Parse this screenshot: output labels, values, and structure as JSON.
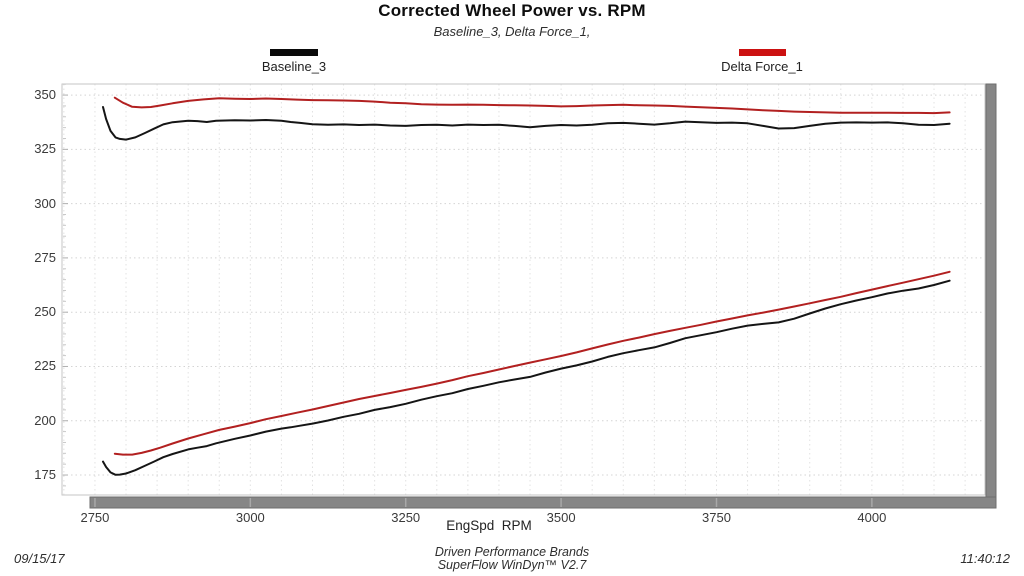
{
  "header": {
    "title": "Corrected Wheel Power vs. RPM",
    "subtitle": "Baseline_3, Delta Force_1,"
  },
  "legend": [
    {
      "label": "Baseline_3",
      "color": "#0a0a0a"
    },
    {
      "label": "Delta Force_1",
      "color": "#cc1111"
    }
  ],
  "footer": {
    "line1": "Driven Performance Brands",
    "line2": "SuperFlow WinDyn™ V2.7",
    "date": "09/15/17",
    "time": "11:40:12"
  },
  "chart_data": {
    "type": "line",
    "title": "Corrected Wheel Power vs. RPM",
    "subtitle": "Baseline_3, Delta Force_1,",
    "xlabel": "EngSpd  RPM",
    "ylabel": "",
    "xlim": [
      2697,
      4182
    ],
    "ylim": [
      165.8,
      355.1
    ],
    "xticks": [
      2750,
      3000,
      3250,
      3500,
      3750,
      4000
    ],
    "yticks": [
      175,
      200,
      225,
      250,
      275,
      300,
      325,
      350
    ],
    "x_minor_step": 50,
    "y_minor_step": 5,
    "grid": "dotted",
    "legend_position": "top",
    "colors": {
      "grid_h": "#d4d4d4",
      "grid_v": "#e2e2e2",
      "border": "#c6c6c6",
      "scrollbar_fill": "#868686",
      "scrollbar_edge": "#6e6e6e"
    },
    "series": [
      {
        "name": "Baseline_3 torque",
        "run": "Baseline_3",
        "color": "#151515",
        "x": [
          2763,
          2768,
          2775,
          2783,
          2790,
          2800,
          2815,
          2830,
          2845,
          2860,
          2875,
          2900,
          2915,
          2930,
          2945,
          2975,
          3000,
          3025,
          3050,
          3065,
          3080,
          3100,
          3125,
          3150,
          3175,
          3200,
          3225,
          3250,
          3275,
          3300,
          3325,
          3350,
          3375,
          3400,
          3425,
          3450,
          3475,
          3500,
          3525,
          3550,
          3575,
          3600,
          3625,
          3650,
          3675,
          3700,
          3725,
          3750,
          3775,
          3800,
          3825,
          3850,
          3875,
          3900,
          3925,
          3950,
          3975,
          4000,
          4025,
          4050,
          4075,
          4100,
          4125
        ],
        "y": [
          344.5,
          339.0,
          333.5,
          330.5,
          329.8,
          329.5,
          330.5,
          332.5,
          334.5,
          336.5,
          337.5,
          338.2,
          338.0,
          337.6,
          338.2,
          338.4,
          338.3,
          338.5,
          338.2,
          337.6,
          337.2,
          336.6,
          336.3,
          336.5,
          336.2,
          336.4,
          336.0,
          335.8,
          336.2,
          336.3,
          336.0,
          336.4,
          336.2,
          336.3,
          335.8,
          335.2,
          335.8,
          336.2,
          336.0,
          336.3,
          337.0,
          337.2,
          336.8,
          336.4,
          337.0,
          337.8,
          337.5,
          337.2,
          337.3,
          337.0,
          335.8,
          334.6,
          334.8,
          335.8,
          336.8,
          337.3,
          337.4,
          337.3,
          337.4,
          337.0,
          336.3,
          336.2,
          336.8
        ]
      },
      {
        "name": "Baseline_3 power",
        "run": "Baseline_3",
        "color": "#151515",
        "x": [
          2763,
          2768,
          2775,
          2783,
          2790,
          2800,
          2815,
          2830,
          2845,
          2860,
          2875,
          2900,
          2915,
          2930,
          2945,
          2975,
          3000,
          3025,
          3050,
          3065,
          3080,
          3100,
          3125,
          3150,
          3175,
          3200,
          3225,
          3250,
          3275,
          3300,
          3325,
          3350,
          3375,
          3400,
          3425,
          3450,
          3475,
          3500,
          3525,
          3550,
          3575,
          3600,
          3625,
          3650,
          3675,
          3700,
          3725,
          3750,
          3775,
          3800,
          3825,
          3850,
          3875,
          3900,
          3925,
          3950,
          3975,
          4000,
          4025,
          4050,
          4075,
          4100,
          4125
        ],
        "y": [
          181.2,
          178.7,
          176.2,
          175.1,
          175.2,
          175.7,
          177.2,
          179.2,
          181.2,
          183.2,
          184.7,
          186.8,
          187.6,
          188.3,
          189.6,
          191.7,
          193.2,
          195.0,
          196.4,
          197.0,
          197.7,
          198.7,
          200.1,
          201.8,
          203.2,
          205.0,
          206.3,
          207.8,
          209.7,
          211.3,
          212.7,
          214.6,
          216.1,
          217.7,
          219.0,
          220.2,
          222.2,
          224.0,
          225.5,
          227.3,
          229.4,
          231.1,
          232.5,
          233.8,
          235.8,
          238.0,
          239.4,
          240.8,
          242.4,
          243.8,
          244.6,
          245.3,
          247.0,
          249.4,
          251.7,
          253.7,
          255.4,
          256.9,
          258.6,
          259.9,
          260.9,
          262.5,
          264.5
        ]
      },
      {
        "name": "Delta Force_1 torque",
        "run": "Delta Force_1",
        "color": "#b22020",
        "x": [
          2782,
          2795,
          2810,
          2825,
          2840,
          2855,
          2875,
          2900,
          2925,
          2950,
          2975,
          3000,
          3025,
          3050,
          3075,
          3100,
          3125,
          3150,
          3175,
          3200,
          3225,
          3250,
          3275,
          3300,
          3325,
          3350,
          3375,
          3400,
          3425,
          3450,
          3475,
          3500,
          3525,
          3550,
          3575,
          3600,
          3625,
          3650,
          3675,
          3700,
          3725,
          3750,
          3775,
          3800,
          3825,
          3850,
          3875,
          3900,
          3925,
          3950,
          3975,
          4000,
          4025,
          4050,
          4075,
          4100,
          4125
        ],
        "y": [
          348.8,
          346.5,
          344.6,
          344.3,
          344.5,
          345.2,
          346.2,
          347.3,
          348.0,
          348.5,
          348.3,
          348.2,
          348.4,
          348.2,
          347.9,
          347.7,
          347.6,
          347.5,
          347.3,
          347.0,
          346.5,
          346.2,
          345.8,
          345.6,
          345.5,
          345.6,
          345.5,
          345.4,
          345.3,
          345.2,
          345.0,
          344.8,
          344.9,
          345.2,
          345.4,
          345.5,
          345.3,
          345.2,
          345.0,
          344.7,
          344.4,
          344.1,
          343.8,
          343.4,
          343.0,
          342.7,
          342.4,
          342.2,
          342.0,
          341.9,
          341.9,
          341.9,
          341.9,
          341.8,
          341.8,
          341.7,
          342.0
        ]
      },
      {
        "name": "Delta Force_1 power",
        "run": "Delta Force_1",
        "color": "#b22020",
        "x": [
          2782,
          2795,
          2810,
          2825,
          2840,
          2855,
          2875,
          2900,
          2925,
          2950,
          2975,
          3000,
          3025,
          3050,
          3075,
          3100,
          3125,
          3150,
          3175,
          3200,
          3225,
          3250,
          3275,
          3300,
          3325,
          3350,
          3375,
          3400,
          3425,
          3450,
          3475,
          3500,
          3525,
          3550,
          3575,
          3600,
          3625,
          3650,
          3675,
          3700,
          3725,
          3750,
          3775,
          3800,
          3825,
          3850,
          3875,
          3900,
          3925,
          3950,
          3975,
          4000,
          4025,
          4050,
          4075,
          4100,
          4125
        ],
        "y": [
          184.8,
          184.4,
          184.4,
          185.2,
          186.3,
          187.6,
          189.5,
          191.8,
          193.8,
          195.8,
          197.3,
          198.9,
          200.7,
          202.2,
          203.7,
          205.2,
          206.8,
          208.4,
          210.0,
          211.4,
          212.8,
          214.2,
          215.6,
          217.1,
          218.7,
          220.5,
          222.0,
          223.6,
          225.2,
          226.8,
          228.3,
          229.8,
          231.5,
          233.3,
          235.1,
          236.8,
          238.3,
          239.9,
          241.4,
          242.8,
          244.2,
          245.7,
          247.1,
          248.5,
          249.8,
          251.2,
          252.6,
          254.1,
          255.6,
          257.1,
          258.8,
          260.4,
          262.0,
          263.6,
          265.2,
          266.8,
          268.6
        ]
      }
    ]
  }
}
